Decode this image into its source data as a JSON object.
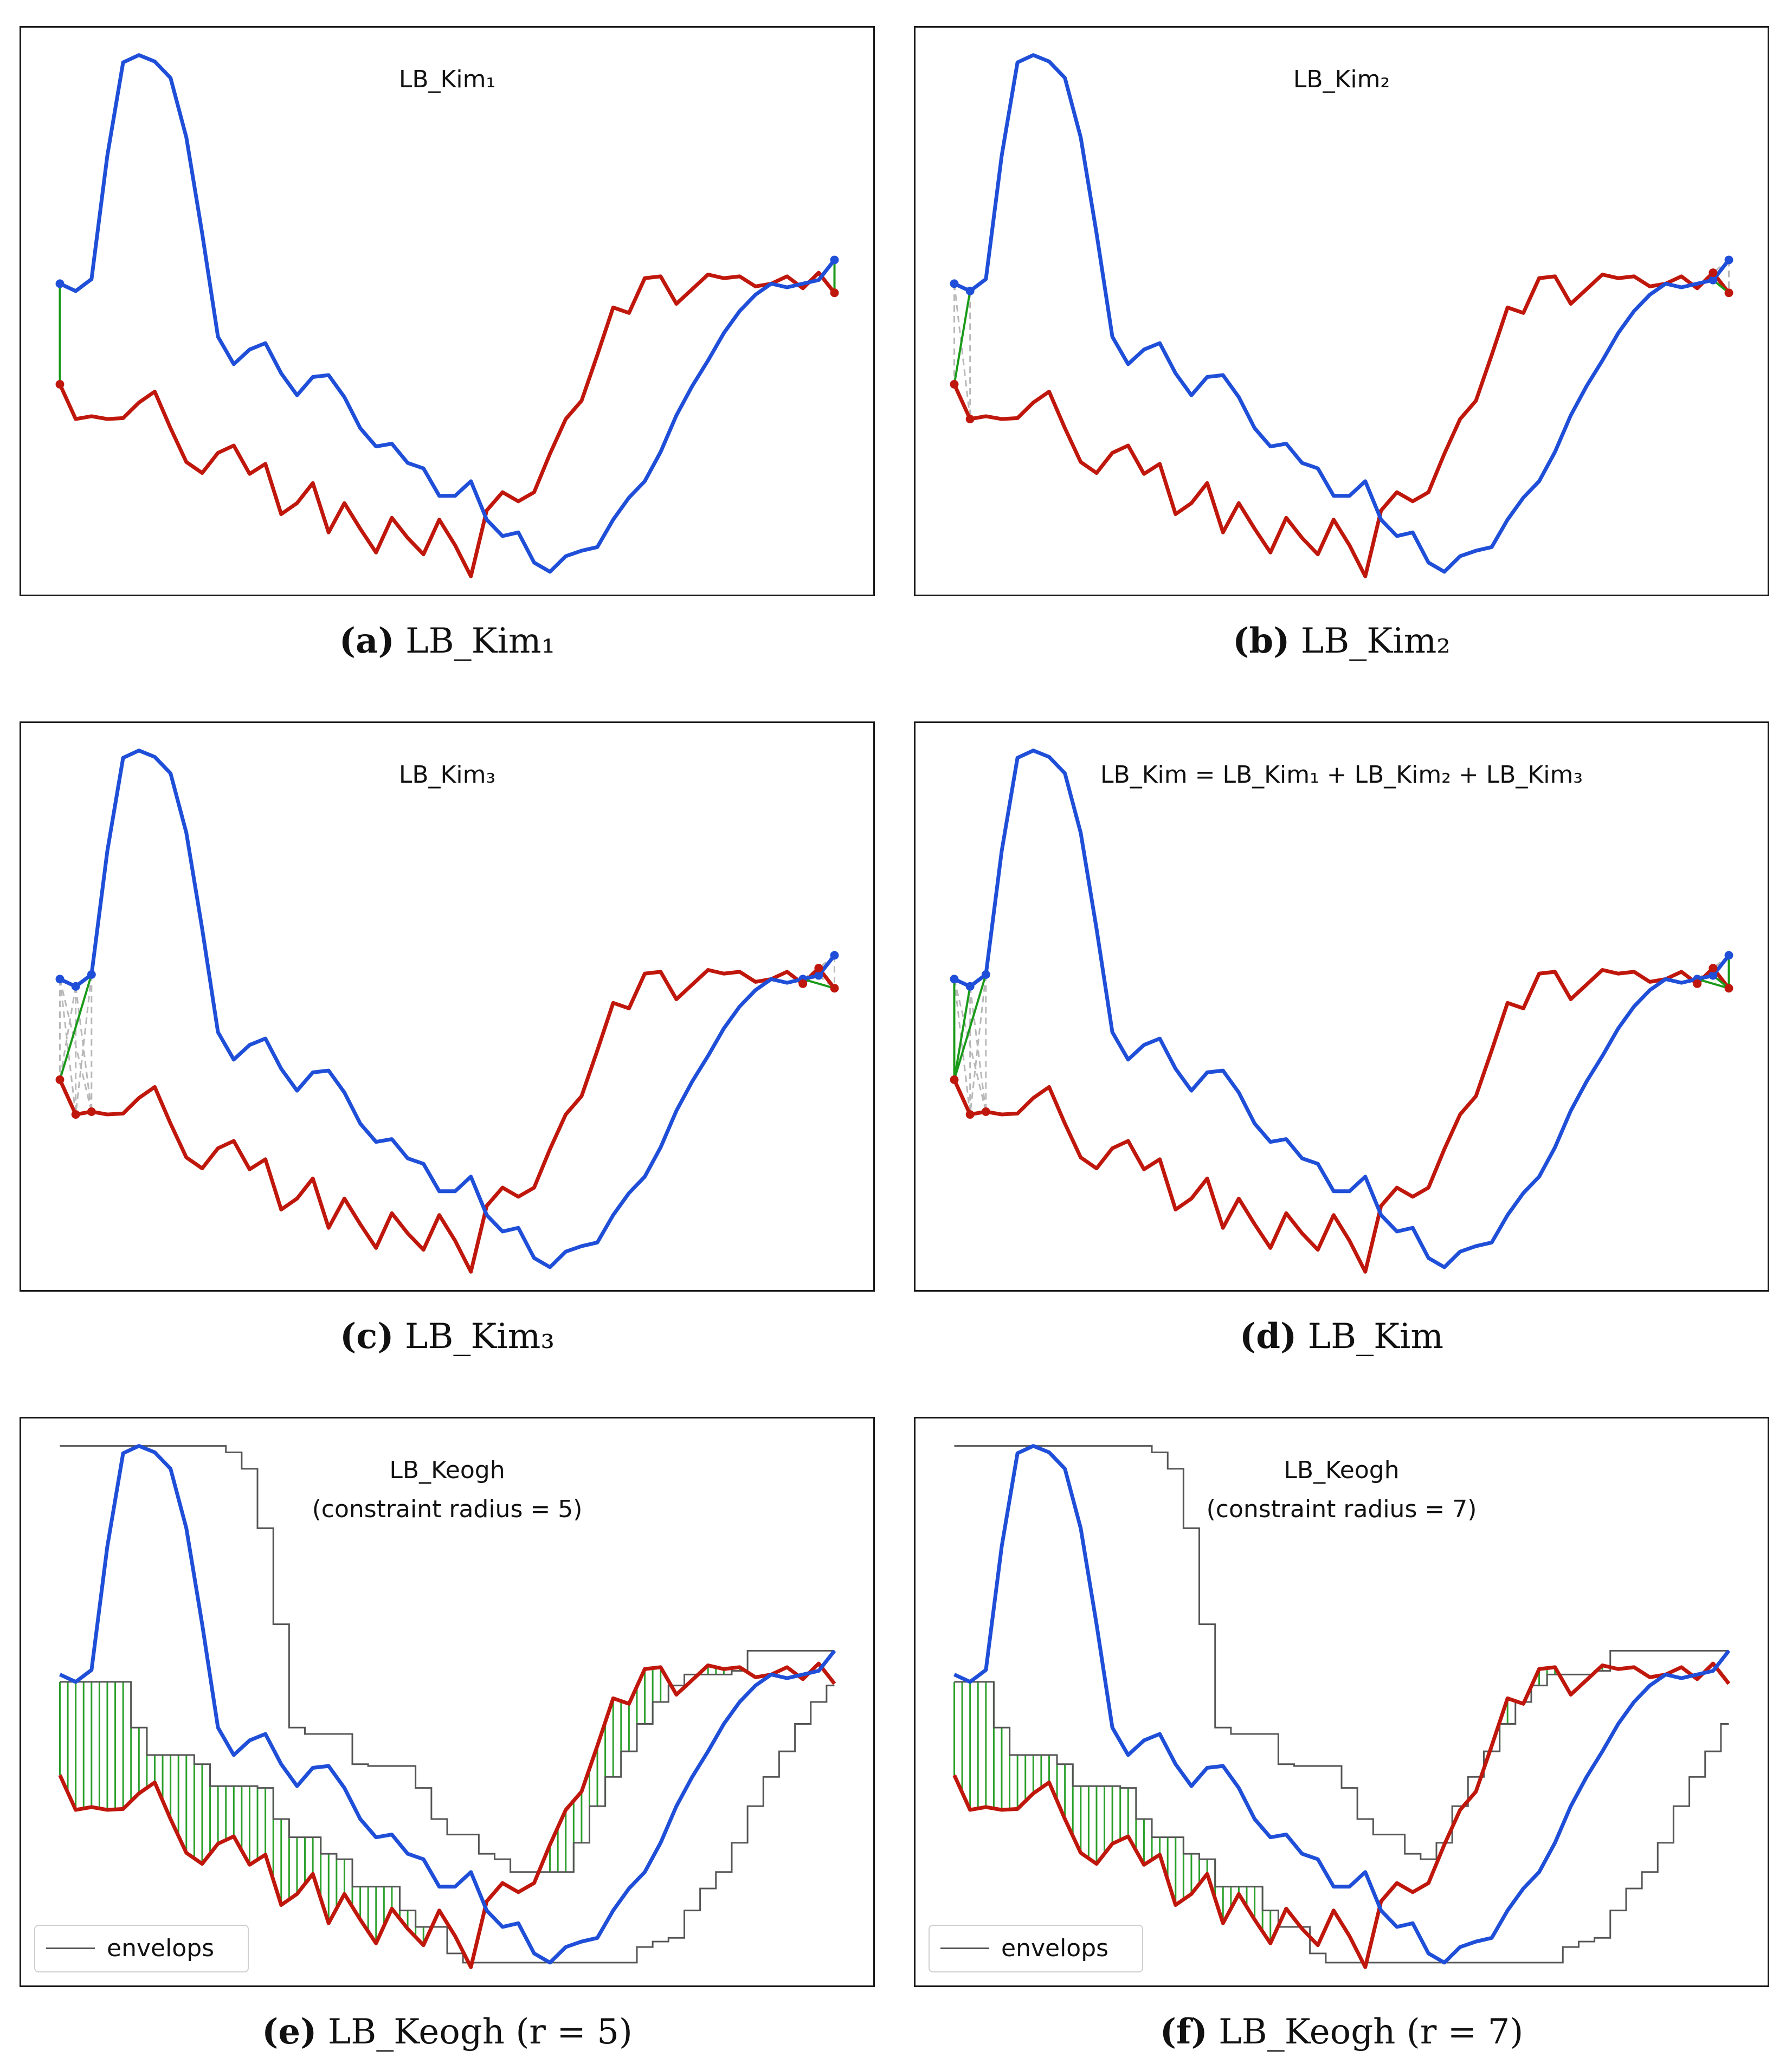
{
  "chart_data": [
    {
      "type": "line",
      "id": "a",
      "title": "LB_Kim₁",
      "caption_letter": "(a)",
      "caption_text": "LB_Kim₁",
      "bound": "kim",
      "kim_points": 1,
      "kim_direct": [
        [
          0,
          0
        ],
        [
          49,
          49
        ]
      ],
      "kim_dashed": []
    },
    {
      "type": "line",
      "id": "b",
      "title": "LB_Kim₂",
      "caption_letter": "(b)",
      "caption_text": "LB_Kim₂",
      "bound": "kim",
      "kim_points": 2,
      "kim_direct": [
        [
          1,
          0
        ],
        [
          48,
          49
        ]
      ],
      "kim_dashed": [
        [
          0,
          0
        ],
        [
          0,
          1
        ],
        [
          1,
          1
        ],
        [
          48,
          48
        ],
        [
          49,
          48
        ],
        [
          49,
          49
        ]
      ]
    },
    {
      "type": "line",
      "id": "c",
      "title": "LB_Kim₃",
      "caption_letter": "(c)",
      "caption_text": "LB_Kim₃",
      "bound": "kim",
      "kim_points": 3,
      "kim_direct": [
        [
          2,
          0
        ],
        [
          47,
          49
        ]
      ],
      "kim_dashed": [
        [
          0,
          0
        ],
        [
          0,
          1
        ],
        [
          0,
          2
        ],
        [
          1,
          0
        ],
        [
          1,
          1
        ],
        [
          1,
          2
        ],
        [
          2,
          1
        ],
        [
          2,
          2
        ],
        [
          47,
          47
        ],
        [
          47,
          48
        ],
        [
          48,
          47
        ],
        [
          48,
          48
        ],
        [
          48,
          49
        ],
        [
          49,
          47
        ],
        [
          49,
          48
        ],
        [
          49,
          49
        ]
      ]
    },
    {
      "type": "line",
      "id": "d",
      "title": "LB_Kim = LB_Kim₁ + LB_Kim₂ + LB_Kim₃",
      "caption_letter": "(d)",
      "caption_text": "LB_Kim",
      "bound": "kim",
      "kim_points": 3,
      "kim_direct": [
        [
          0,
          0
        ],
        [
          1,
          0
        ],
        [
          2,
          0
        ],
        [
          49,
          49
        ],
        [
          48,
          49
        ],
        [
          47,
          49
        ]
      ],
      "kim_dashed": [
        [
          0,
          1
        ],
        [
          0,
          2
        ],
        [
          1,
          1
        ],
        [
          1,
          2
        ],
        [
          2,
          1
        ],
        [
          2,
          2
        ],
        [
          47,
          47
        ],
        [
          47,
          48
        ],
        [
          48,
          47
        ],
        [
          48,
          48
        ],
        [
          49,
          47
        ],
        [
          49,
          48
        ]
      ]
    },
    {
      "type": "line",
      "id": "e",
      "title": "LB_Keogh",
      "subtitle": "(constraint radius = 5)",
      "caption_letter": "(e)",
      "caption_text": "LB_Keogh (r = 5)",
      "bound": "keogh",
      "radius": 5,
      "legend": "envelops"
    },
    {
      "type": "line",
      "id": "f",
      "title": "LB_Keogh",
      "subtitle": "(constraint radius = 7)",
      "caption_letter": "(f)",
      "caption_text": "LB_Keogh (r = 7)",
      "bound": "keogh",
      "radius": 7,
      "legend": "envelops"
    }
  ],
  "series": {
    "x": [
      0,
      1,
      2,
      3,
      4,
      5,
      6,
      7,
      8,
      9,
      10,
      11,
      12,
      13,
      14,
      15,
      16,
      17,
      18,
      19,
      20,
      21,
      22,
      23,
      24,
      25,
      26,
      27,
      28,
      29,
      30,
      31,
      32,
      33,
      34,
      35,
      36,
      37,
      38,
      39,
      40,
      41,
      42,
      43,
      44,
      45,
      46,
      47,
      48,
      49
    ],
    "blue": [
      3.3,
      3.22,
      3.35,
      4.7,
      5.72,
      5.8,
      5.73,
      5.55,
      4.9,
      3.85,
      2.72,
      2.42,
      2.58,
      2.65,
      2.32,
      2.08,
      2.28,
      2.3,
      2.06,
      1.72,
      1.52,
      1.55,
      1.34,
      1.28,
      0.98,
      0.98,
      1.14,
      0.72,
      0.54,
      0.58,
      0.25,
      0.15,
      0.32,
      0.38,
      0.42,
      0.72,
      0.96,
      1.14,
      1.46,
      1.86,
      2.18,
      2.46,
      2.76,
      3.0,
      3.18,
      3.3,
      3.26,
      3.3,
      3.34,
      3.56
    ],
    "blue_note": "",
    "blue_values": [
      3.3,
      3.22,
      3.35,
      4.7,
      5.72,
      5.8,
      5.73,
      5.55,
      4.9,
      3.85,
      2.72,
      2.42,
      2.58,
      2.65,
      2.32,
      2.08,
      2.28,
      2.3,
      2.06,
      1.72,
      1.52,
      1.55,
      1.34,
      1.28,
      0.98,
      0.98,
      1.14,
      0.72,
      0.54,
      0.58,
      0.25,
      0.15,
      0.32,
      0.38,
      0.42,
      0.72,
      0.96,
      1.14,
      1.46,
      1.86,
      2.18,
      2.46,
      2.76,
      3.0,
      3.18,
      3.3,
      3.26,
      3.3,
      3.34,
      3.56
    ],
    "red_values": [
      2.2,
      1.82,
      1.85,
      1.82,
      1.83,
      2.0,
      2.12,
      1.72,
      1.35,
      1.23,
      1.45,
      1.53,
      1.22,
      1.33,
      0.78,
      0.9,
      1.12,
      0.58,
      0.9,
      0.62,
      0.36,
      0.74,
      0.52,
      0.34,
      0.72,
      0.44,
      0.1,
      0.82,
      1.02,
      0.92,
      1.02,
      1.44,
      1.82,
      2.02,
      2.52,
      3.04,
      2.98,
      3.36,
      3.38,
      3.08,
      3.24,
      3.4,
      3.36,
      3.38,
      3.27,
      3.3,
      3.38,
      3.25,
      3.42,
      3.2
    ],
    "blue_main": [
      3.3,
      3.22,
      3.35,
      4.7,
      5.72,
      5.8,
      5.73,
      5.55,
      4.9,
      3.85,
      2.72,
      2.42,
      2.58,
      2.65,
      2.32,
      2.08,
      2.28,
      2.3,
      2.06,
      1.72,
      1.52,
      1.55,
      1.34,
      1.28,
      0.98,
      0.98,
      1.14,
      0.72,
      0.54,
      0.58,
      0.25,
      0.15,
      0.32,
      0.38,
      0.42,
      0.72,
      0.96,
      1.14,
      1.46,
      1.86,
      2.18,
      2.46,
      2.76,
      3.0,
      3.18,
      3.3,
      3.26,
      3.3,
      3.34,
      3.56
    ],
    "blue_series": [
      3.3,
      3.22,
      3.35,
      4.7,
      5.72,
      5.8,
      5.73,
      5.55,
      4.9,
      3.85,
      2.72,
      2.42,
      2.58,
      2.65,
      2.32,
      2.08,
      2.28,
      2.3,
      2.06,
      1.72,
      1.52,
      1.55,
      1.34,
      1.28,
      0.98,
      0.98,
      1.14,
      0.72,
      0.54,
      0.58,
      0.25,
      0.15,
      0.32,
      0.38,
      0.42,
      0.72,
      0.96,
      1.14,
      1.46,
      1.86,
      2.18,
      2.46,
      2.76,
      3.0,
      3.18,
      3.3,
      3.26,
      3.3,
      3.34,
      3.56
    ]
  },
  "query": [
    3.3,
    3.22,
    3.35,
    4.7,
    5.72,
    5.8,
    5.73,
    5.55,
    4.9,
    3.85,
    2.72,
    2.42,
    2.58,
    2.65,
    2.32,
    2.08,
    2.28,
    2.3,
    2.06,
    1.72,
    1.52,
    1.55,
    1.34,
    1.28,
    0.98,
    0.98,
    1.14,
    0.72,
    0.54,
    0.58,
    0.25,
    0.15,
    0.32,
    0.38,
    0.42,
    0.72,
    0.96,
    1.14,
    1.46,
    1.86,
    2.18,
    2.46,
    2.76,
    3.0,
    3.18,
    3.3,
    3.26,
    3.3,
    3.34,
    3.56
  ],
  "candidate": [
    2.2,
    1.82,
    1.85,
    1.82,
    1.83,
    2.0,
    2.12,
    1.72,
    1.35,
    1.23,
    1.45,
    1.53,
    1.22,
    1.33,
    0.78,
    0.9,
    1.12,
    0.58,
    0.9,
    0.62,
    0.36,
    0.74,
    0.52,
    0.34,
    0.72,
    0.44,
    0.1,
    0.82,
    1.02,
    0.92,
    1.02,
    1.44,
    1.82,
    2.02,
    2.52,
    3.04,
    2.98,
    3.36,
    3.38,
    3.08,
    3.24,
    3.4,
    3.36,
    3.38,
    3.27,
    3.3,
    3.38,
    3.25,
    3.42,
    3.2
  ],
  "axes": {
    "xlim": [
      -2.4,
      51.4
    ],
    "ylim": [
      -0.1,
      6.1
    ],
    "grid": false,
    "ticks_visible": false
  },
  "colors": {
    "query": "#1f4fd8",
    "candidate": "#c0170c",
    "direct": "#1a9a1a",
    "dashed": "#b8b8b8",
    "envelope": "#555555",
    "hatch": "#2aa02a"
  }
}
